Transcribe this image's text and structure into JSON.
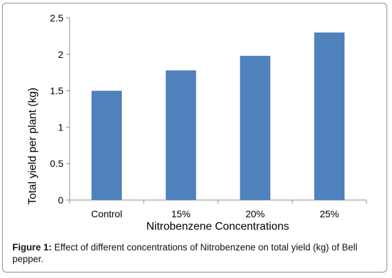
{
  "chart_data": {
    "type": "bar",
    "categories": [
      "Control",
      "15%",
      "20%",
      "25%"
    ],
    "values": [
      1.5,
      1.78,
      1.98,
      2.3
    ],
    "title": "",
    "xlabel": "Nitrobenzene Concentrations",
    "ylabel": "Total yield per plant (kg)",
    "ylim": [
      0,
      2.5
    ],
    "yticks": [
      "0",
      "0.5",
      "1",
      "1.5",
      "2",
      "2.5"
    ],
    "grid": false,
    "legend": "none",
    "bar_color": "#4f81bd"
  },
  "caption": {
    "label": "Figure 1:",
    "text": "Effect of different concentrations of Nitrobenzene on total yield (kg) of Bell pepper."
  }
}
